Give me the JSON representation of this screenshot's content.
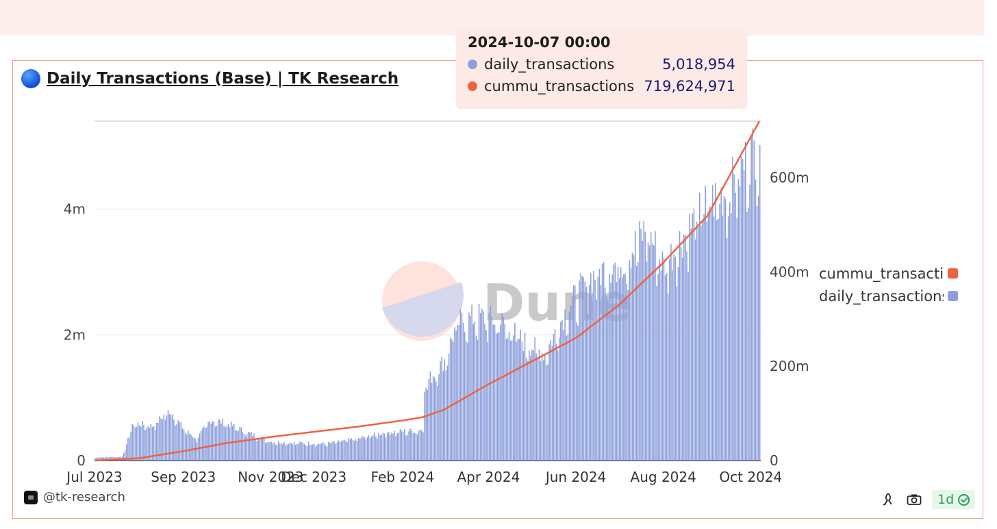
{
  "title": "Daily Transactions (Base) | TK Research",
  "tooltip": {
    "date": "2024-10-07 00:00",
    "rows": [
      {
        "name": "daily_transactions",
        "value": "5,018,954",
        "color": "#8da0dc"
      },
      {
        "name": "cummu_transactions",
        "value": "719,624,971",
        "color": "#f0623d"
      }
    ]
  },
  "legend": [
    {
      "name": "cummu_transactions",
      "color": "#f0623d"
    },
    {
      "name": "daily_transactions",
      "color": "#8da0dc"
    }
  ],
  "watermark": "Dune",
  "footer": {
    "user": "@tk-research",
    "refresh": "1d"
  },
  "chart_data": {
    "type": "bar",
    "title": "Daily Transactions (Base) | TK Research",
    "x_tick_labels": [
      "Jul 2023",
      "Sep 2023",
      "Nov 2023",
      "Dec 2023",
      "Feb 2024",
      "Apr 2024",
      "Jun 2024",
      "Aug 2024",
      "Oct 2024"
    ],
    "x_range": [
      "2023-07-01",
      "2024-10-08"
    ],
    "y_left": {
      "ticks": [
        "0",
        "2m",
        "4m"
      ],
      "lim": [
        0,
        5400000
      ]
    },
    "y_right": {
      "ticks": [
        "0",
        "200m",
        "400m",
        "600m"
      ],
      "lim": [
        0,
        720000000
      ]
    },
    "grid": true,
    "legend_position": "right",
    "series": [
      {
        "name": "daily_transactions",
        "type": "bar",
        "axis": "left",
        "color": "#8da0dc",
        "keypoints": [
          [
            "2023-07-01",
            50000
          ],
          [
            "2023-07-20",
            60000
          ],
          [
            "2023-07-28",
            600000
          ],
          [
            "2023-08-10",
            550000
          ],
          [
            "2023-08-22",
            800000
          ],
          [
            "2023-09-01",
            500000
          ],
          [
            "2023-09-10",
            350000
          ],
          [
            "2023-09-20",
            650000
          ],
          [
            "2023-10-01",
            600000
          ],
          [
            "2023-10-15",
            450000
          ],
          [
            "2023-11-01",
            300000
          ],
          [
            "2023-11-20",
            280000
          ],
          [
            "2023-12-10",
            270000
          ],
          [
            "2024-01-01",
            350000
          ],
          [
            "2024-01-20",
            450000
          ],
          [
            "2024-02-10",
            480000
          ],
          [
            "2024-02-15",
            500000
          ],
          [
            "2024-02-16",
            1200000
          ],
          [
            "2024-03-01",
            1600000
          ],
          [
            "2024-03-10",
            2200000
          ],
          [
            "2024-03-25",
            2300000
          ],
          [
            "2024-04-10",
            2200000
          ],
          [
            "2024-04-25",
            1900000
          ],
          [
            "2024-05-10",
            1700000
          ],
          [
            "2024-05-25",
            2400000
          ],
          [
            "2024-06-10",
            2900000
          ],
          [
            "2024-06-25",
            3100000
          ],
          [
            "2024-07-05",
            3200000
          ],
          [
            "2024-07-20",
            3700000
          ],
          [
            "2024-08-01",
            3100000
          ],
          [
            "2024-08-15",
            3600000
          ],
          [
            "2024-09-01",
            4100000
          ],
          [
            "2024-09-15",
            4300000
          ],
          [
            "2024-10-01",
            4900000
          ],
          [
            "2024-10-07",
            5018954
          ]
        ]
      },
      {
        "name": "cummu_transactions",
        "type": "line",
        "axis": "right",
        "color": "#f0623d",
        "keypoints": [
          [
            "2023-07-01",
            0
          ],
          [
            "2023-08-01",
            5000000
          ],
          [
            "2023-09-01",
            20000000
          ],
          [
            "2023-10-01",
            37000000
          ],
          [
            "2023-11-01",
            50000000
          ],
          [
            "2023-12-01",
            61000000
          ],
          [
            "2024-01-01",
            72000000
          ],
          [
            "2024-02-01",
            85000000
          ],
          [
            "2024-02-15",
            92000000
          ],
          [
            "2024-03-01",
            108000000
          ],
          [
            "2024-04-01",
            162000000
          ],
          [
            "2024-05-01",
            210000000
          ],
          [
            "2024-06-01",
            260000000
          ],
          [
            "2024-07-01",
            330000000
          ],
          [
            "2024-08-01",
            420000000
          ],
          [
            "2024-09-01",
            520000000
          ],
          [
            "2024-10-07",
            719624971
          ]
        ]
      }
    ]
  }
}
